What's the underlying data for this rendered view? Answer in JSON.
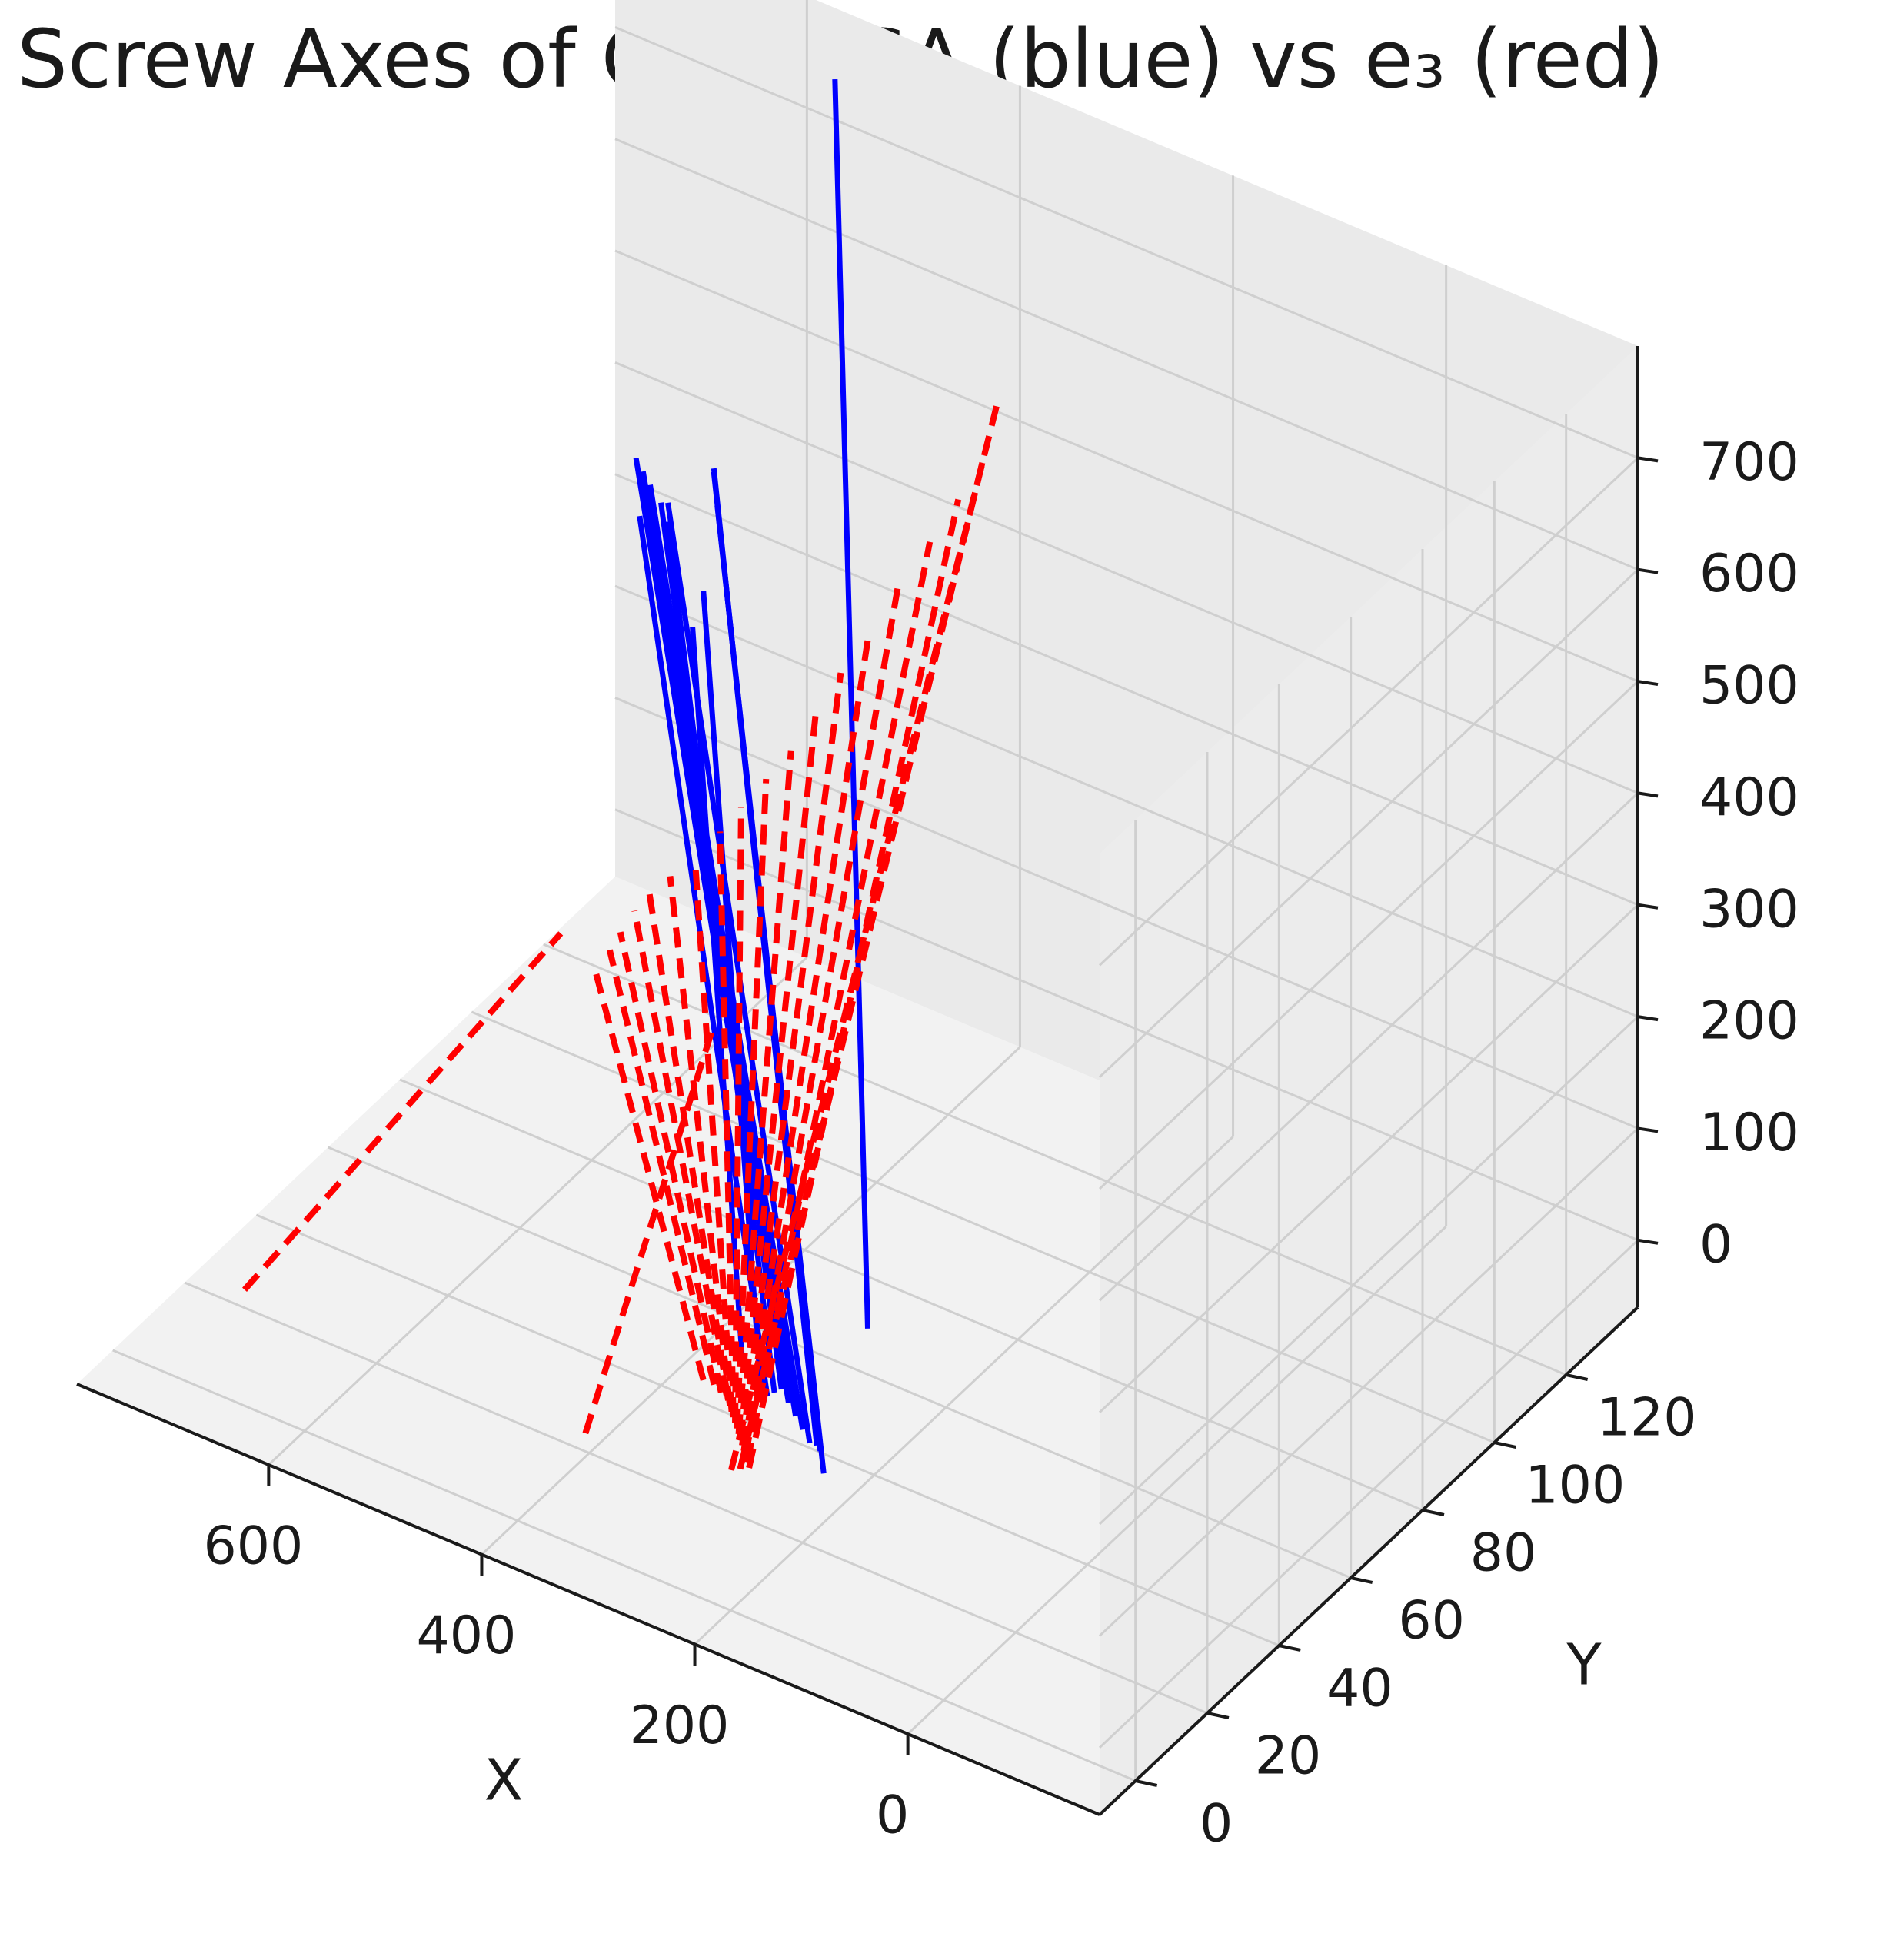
{
  "chart_data": {
    "type": "line3d",
    "title": "Screw Axes of Club: ISA (blue) vs e₃ (red)",
    "xlabel": "X",
    "ylabel": "Y",
    "zlabel": "",
    "x_ticks": [
      "0",
      "200",
      "400",
      "600"
    ],
    "y_ticks": [
      "0",
      "20",
      "40",
      "60",
      "80",
      "100",
      "120"
    ],
    "z_ticks": [
      "0",
      "100",
      "200",
      "300",
      "400",
      "500",
      "600",
      "700"
    ],
    "xlim": [
      -180,
      780
    ],
    "ylim": [
      -10,
      140
    ],
    "zlim": [
      -60,
      800
    ],
    "grid": true,
    "colors": {
      "isa": "#0000ff",
      "e3": "#ff0000",
      "pane": "#f2f2f2",
      "grid": "#cfcfcf"
    },
    "series": [
      {
        "style": "solid",
        "color": "#0000ff",
        "segments": [
          [
            [
              105,
              10,
              200
            ],
            [
              540,
              130,
              780
            ]
          ],
          [
            [
              180,
              20,
              10
            ],
            [
              600,
              115,
              420
            ]
          ],
          [
            [
              190,
              22,
              20
            ],
            [
              610,
              117,
              440
            ]
          ],
          [
            [
              200,
              24,
              15
            ],
            [
              620,
              120,
              430
            ]
          ],
          [
            [
              210,
              25,
              10
            ],
            [
              680,
              125,
              360
            ]
          ],
          [
            [
              220,
              26,
              15
            ],
            [
              700,
              126,
              365
            ]
          ],
          [
            [
              230,
              27,
              20
            ],
            [
              710,
              127,
              370
            ]
          ],
          [
            [
              240,
              28,
              25
            ],
            [
              720,
              128,
              375
            ]
          ],
          [
            [
              250,
              29,
              30
            ],
            [
              700,
              129,
              340
            ]
          ],
          [
            [
              260,
              30,
              20
            ],
            [
              690,
              128,
              330
            ]
          ],
          [
            [
              270,
              31,
              10
            ],
            [
              720,
              129,
              320
            ]
          ],
          [
            [
              280,
              32,
              15
            ],
            [
              650,
              126,
              290
            ]
          ],
          [
            [
              300,
              33,
              20
            ],
            [
              640,
              120,
              280
            ]
          ]
        ]
      },
      {
        "style": "dashed",
        "color": "#ff0000",
        "segments": [
          [
            [
              250,
              15,
              0
            ],
            [
              320,
              110,
              640
            ]
          ],
          [
            [
              245,
              16,
              0
            ],
            [
              325,
              108,
              600
            ]
          ],
          [
            [
              240,
              17,
              0
            ],
            [
              340,
              105,
              560
            ]
          ],
          [
            [
              245,
              18,
              0
            ],
            [
              360,
              103,
              520
            ]
          ],
          [
            [
              250,
              19,
              0
            ],
            [
              380,
              100,
              480
            ]
          ],
          [
            [
              255,
              20,
              0
            ],
            [
              400,
              98,
              440
            ]
          ],
          [
            [
              260,
              21,
              0
            ],
            [
              420,
              96,
              400
            ]
          ],
          [
            [
              265,
              22,
              0
            ],
            [
              440,
              95,
              360
            ]
          ],
          [
            [
              270,
              23,
              0
            ],
            [
              460,
              94,
              320
            ]
          ],
          [
            [
              275,
              24,
              0
            ],
            [
              480,
              93,
              290
            ]
          ],
          [
            [
              280,
              25,
              0
            ],
            [
              500,
              92,
              260
            ]
          ],
          [
            [
              285,
              26,
              0
            ],
            [
              520,
              92,
              230
            ]
          ],
          [
            [
              290,
              27,
              0
            ],
            [
              540,
              91,
              200
            ]
          ],
          [
            [
              295,
              28,
              0
            ],
            [
              560,
              90,
              180
            ]
          ],
          [
            [
              300,
              29,
              0
            ],
            [
              580,
              90,
              160
            ]
          ],
          [
            [
              305,
              30,
              0
            ],
            [
              590,
              89,
              140
            ]
          ],
          [
            [
              310,
              30,
              0
            ],
            [
              600,
              88,
              120
            ]
          ],
          [
            [
              320,
              31,
              0
            ],
            [
              610,
              88,
              100
            ]
          ],
          [
            [
              330,
              31,
              0
            ],
            [
              620,
              87,
              80
            ]
          ],
          [
            [
              370,
              10,
              0
            ],
            [
              520,
              90,
              60
            ]
          ],
          [
            [
              690,
              10,
              0
            ],
            [
              730,
              110,
              0
            ]
          ]
        ]
      }
    ]
  }
}
